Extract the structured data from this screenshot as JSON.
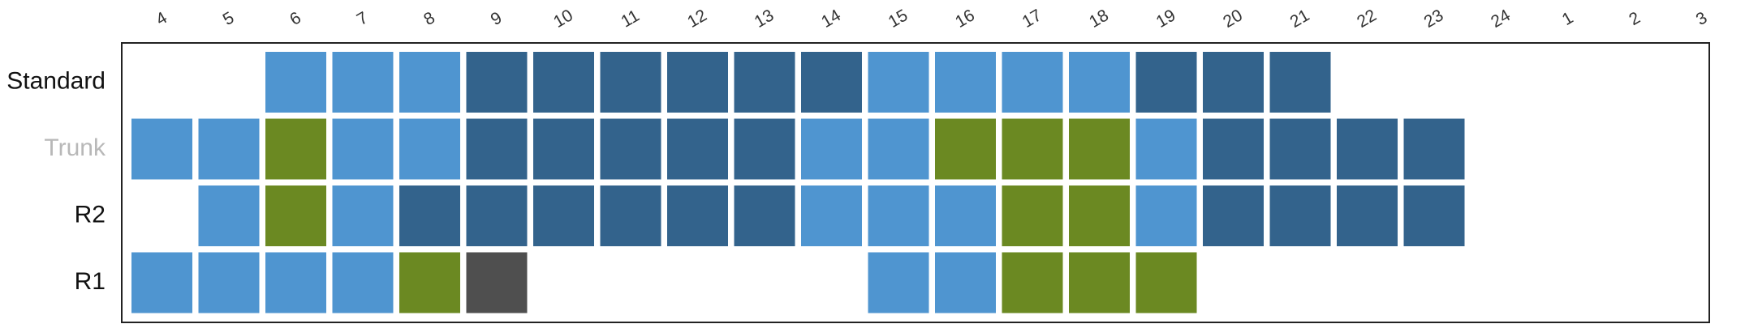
{
  "chart_data": {
    "type": "heatmap",
    "x_labels": [
      "4",
      "5",
      "6",
      "7",
      "8",
      "9",
      "10",
      "11",
      "12",
      "13",
      "14",
      "15",
      "16",
      "17",
      "18",
      "19",
      "20",
      "21",
      "22",
      "23",
      "24",
      "1",
      "2",
      "3"
    ],
    "rows": [
      {
        "label": "Standard",
        "cells": [
          "",
          "",
          "light",
          "light",
          "light",
          "dark",
          "dark",
          "dark",
          "dark",
          "dark",
          "dark",
          "light",
          "light",
          "light",
          "light",
          "dark",
          "dark",
          "dark",
          "",
          "",
          "",
          "",
          "",
          ""
        ]
      },
      {
        "label": "Trunk",
        "cells": [
          "light",
          "light",
          "green",
          "light",
          "light",
          "dark",
          "dark",
          "dark",
          "dark",
          "dark",
          "light",
          "light",
          "green",
          "green",
          "green",
          "light",
          "dark",
          "dark",
          "dark",
          "dark",
          "",
          "",
          "",
          ""
        ]
      },
      {
        "label": "R2",
        "cells": [
          "",
          "light",
          "green",
          "light",
          "dark",
          "dark",
          "dark",
          "dark",
          "dark",
          "dark",
          "light",
          "light",
          "light",
          "green",
          "green",
          "light",
          "dark",
          "dark",
          "dark",
          "dark",
          "",
          "",
          "",
          ""
        ]
      },
      {
        "label": "R1",
        "cells": [
          "light",
          "light",
          "light",
          "light",
          "green",
          "gray",
          "",
          "",
          "",
          "",
          "",
          "light",
          "light",
          "green",
          "green",
          "green",
          "",
          "",
          "",
          "",
          "",
          "",
          "",
          ""
        ]
      }
    ],
    "colors": {
      "light": "#4f95d0",
      "dark": "#33638c",
      "green": "#6b8922",
      "gray": "#4f4f4f",
      "frame": "#222222",
      "label": "#111111",
      "label_muted": "#b8b8b8",
      "tick": "#333333"
    },
    "muted_row": "Trunk"
  }
}
